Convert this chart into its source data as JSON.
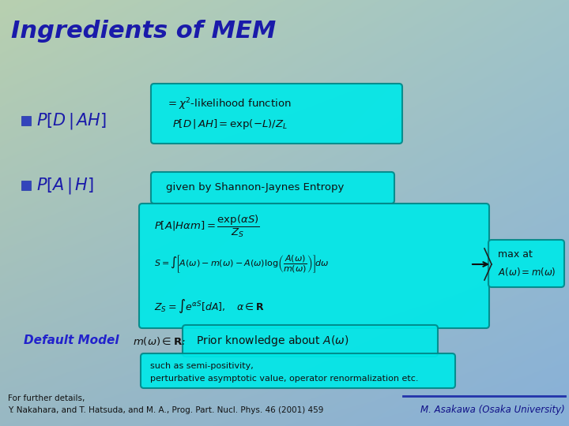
{
  "title": "Ingredients of MEM",
  "title_color": "#1a1aaa",
  "title_fontsize": 22,
  "bullet_color": "#3344bb",
  "bullet1_label": "$P[D\\,|\\,AH]$",
  "bullet2_label": "$P[A\\,|\\,H]$",
  "box1_line1": "$= \\chi^2$-likelihood function",
  "box1_line2": "$P[D\\,|\\,AH] = \\exp(-L)/Z_L$",
  "box2_label": "given by Shannon-Jaynes Entropy",
  "box3_line1": "$P[A|H\\alpha m] = \\dfrac{\\exp(\\alpha S)}{Z_S}$",
  "box3_line2": "$S = \\int\\!\\left[A(\\omega)-m(\\omega)-A(\\omega)\\log\\!\\left(\\dfrac{A(\\omega)}{m(\\omega)}\\right)\\right]\\!d\\omega$",
  "box3_line3": "$Z_S = \\int e^{\\alpha S}[dA], \\quad \\alpha \\in \\mathbf{R}$",
  "maxat_line1": "max at",
  "maxat_line2": "$A(\\omega) = m(\\omega)$",
  "default_model_label": "Default Model",
  "default_model_formula": "$m(\\omega) \\in \\mathbf{R}$:",
  "prior_box_text": "Prior knowledge about $A(\\omega)$",
  "such_as_line1": "such as semi-positivity,",
  "such_as_line2": "perturbative asymptotic value, operator renormalization etc.",
  "footnote_line1": "For further details,",
  "footnote_line2": "Y. Nakahara, and T. Hatsuda, and M. A., Prog. Part. Nucl. Phys. 46 (2001) 459",
  "credit": "M. Asakawa (Osaka University)",
  "footnote_fontsize": 7.5,
  "credit_fontsize": 8.5,
  "cyan_color": "#00e8e8",
  "cyan_edge": "#008888",
  "text_dark": "#111111"
}
